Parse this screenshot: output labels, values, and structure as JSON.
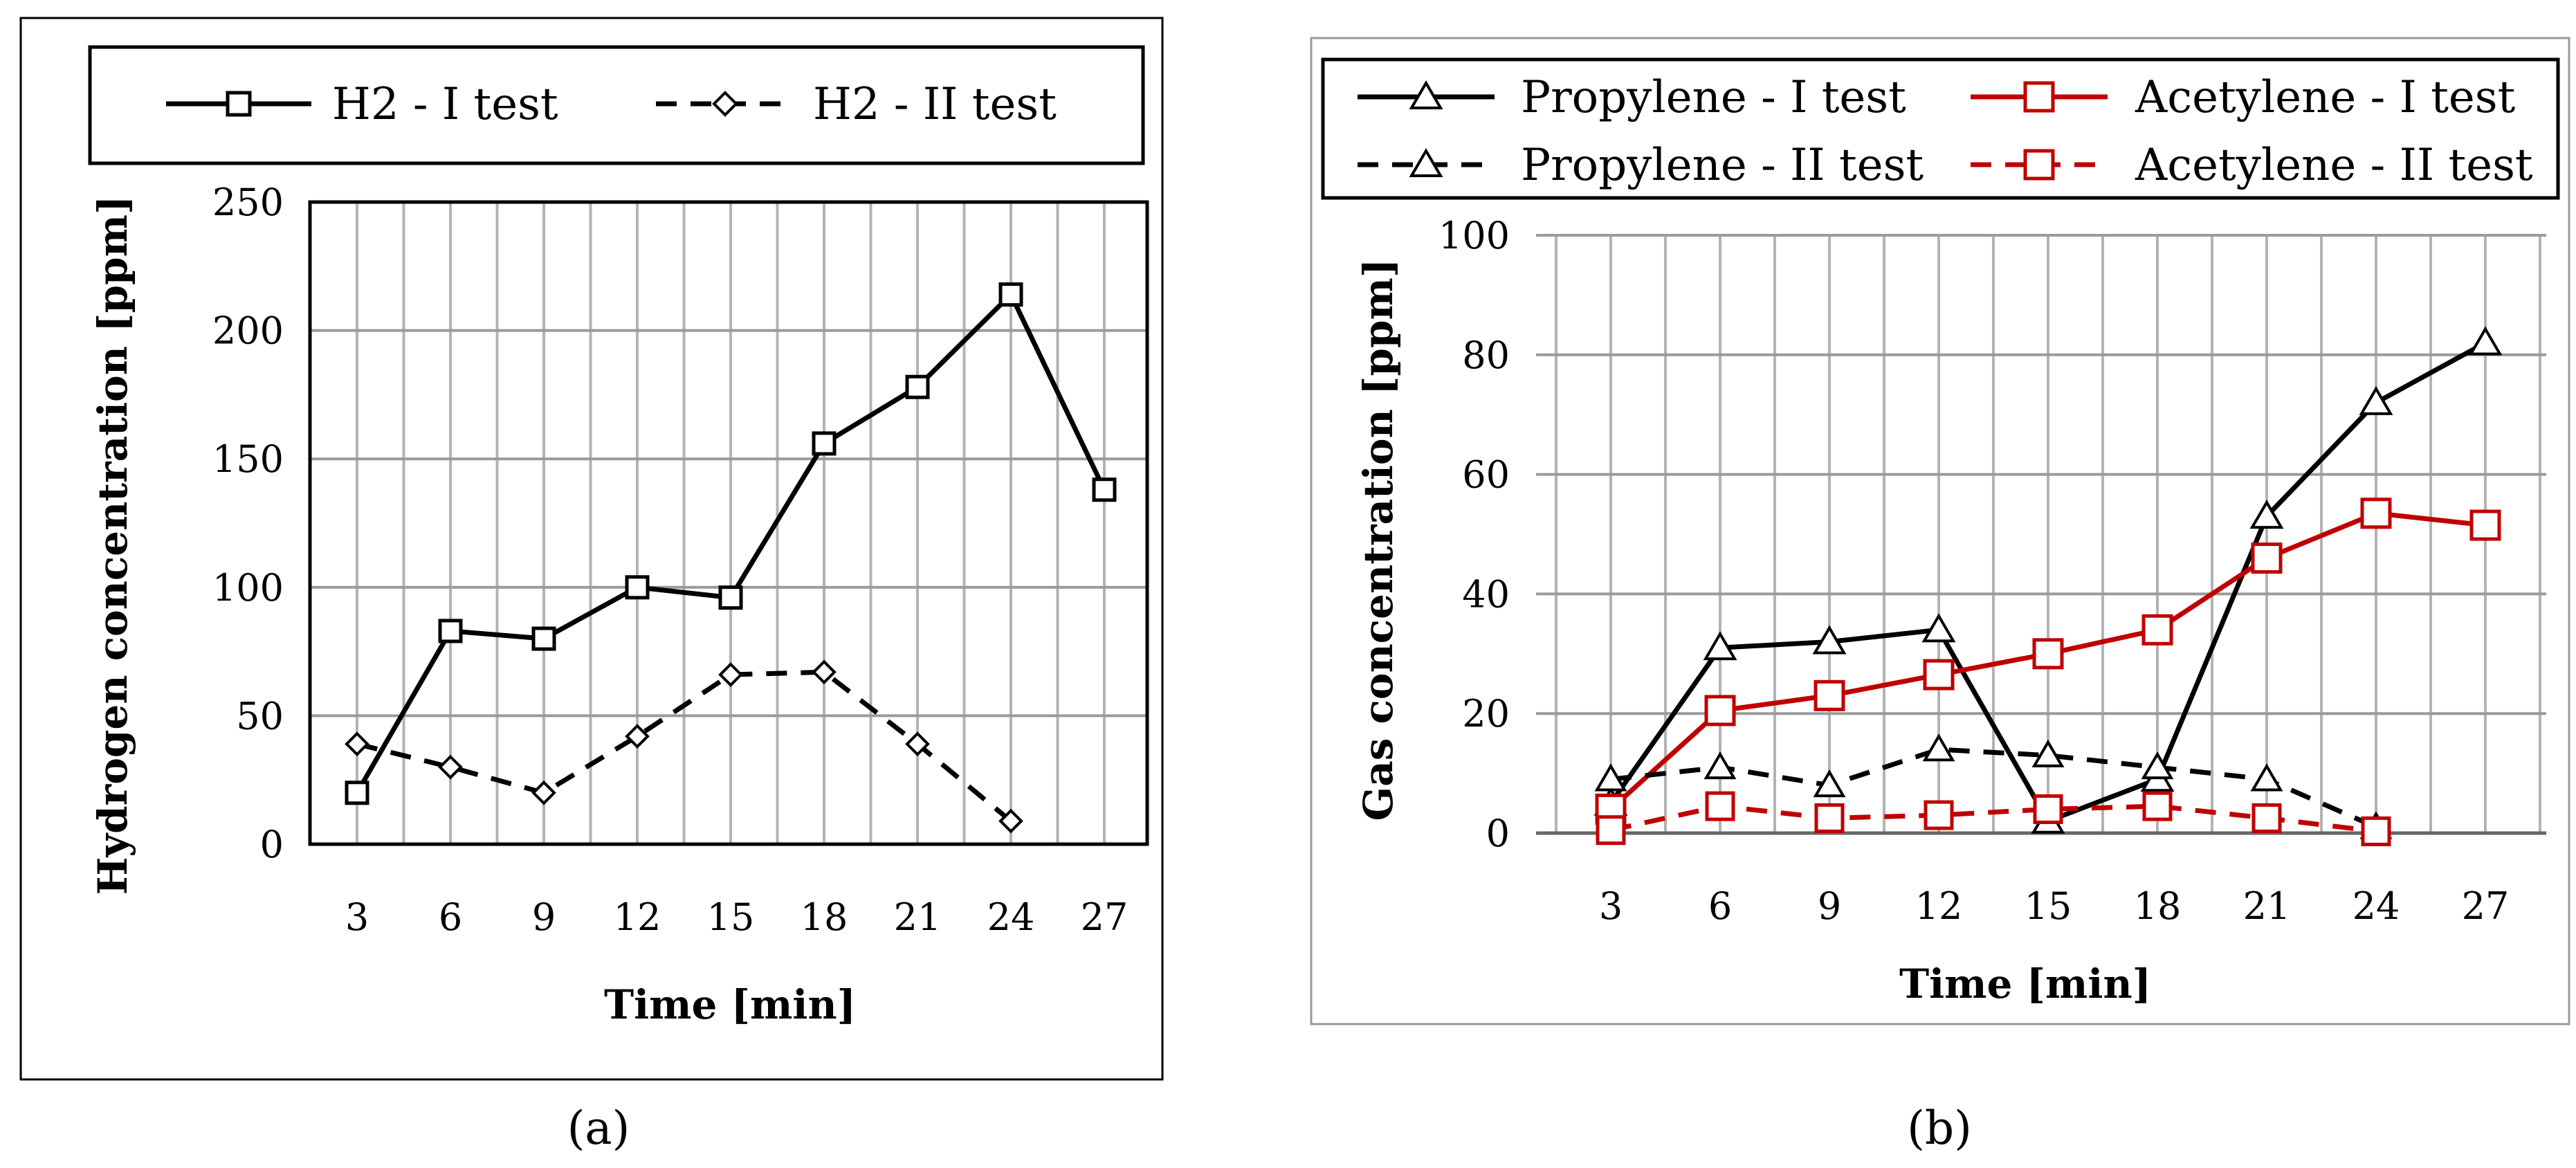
{
  "chart_data": [
    {
      "type": "line",
      "panel_label": "(a)",
      "xlabel": "Time [min]",
      "ylabel": "Hydrogen concentration [ppm]",
      "categories": [
        "3",
        "6",
        "9",
        "12",
        "15",
        "18",
        "21",
        "24",
        "27"
      ],
      "ylim": [
        0,
        250
      ],
      "yticks": [
        0,
        50,
        100,
        150,
        200,
        250
      ],
      "grid": true,
      "legend_position": "top",
      "series": [
        {
          "name": "H2 - I test",
          "color": "#000000",
          "dash": false,
          "marker": "square",
          "values": [
            20,
            83,
            80,
            100,
            96,
            156,
            178,
            214,
            138
          ]
        },
        {
          "name": "H2 - II test",
          "color": "#000000",
          "dash": true,
          "marker": "diamond",
          "values": [
            39,
            30,
            20,
            42,
            66,
            67,
            39,
            9,
            null
          ]
        }
      ]
    },
    {
      "type": "line",
      "panel_label": "(b)",
      "xlabel": "Time [min]",
      "ylabel": "Gas concentration [ppm]",
      "categories": [
        "3",
        "6",
        "9",
        "12",
        "15",
        "18",
        "21",
        "24",
        "27"
      ],
      "ylim": [
        0,
        100
      ],
      "yticks": [
        0,
        20,
        40,
        60,
        80,
        100
      ],
      "grid": true,
      "legend_position": "top",
      "series": [
        {
          "name": "Propylene - I test",
          "color": "#000000",
          "dash": false,
          "marker": "triangle",
          "values": [
            5,
            31,
            32,
            34,
            2,
            9,
            53,
            72,
            82
          ]
        },
        {
          "name": "Acetylene - I test",
          "color": "#C00000",
          "dash": false,
          "marker": "square",
          "values": [
            4,
            20.5,
            23,
            26.5,
            30,
            34,
            46,
            53.5,
            51.5
          ]
        },
        {
          "name": "Propylene - II test",
          "color": "#000000",
          "dash": true,
          "marker": "triangle",
          "values": [
            9,
            11,
            8,
            14,
            13,
            11,
            9,
            1,
            null
          ]
        },
        {
          "name": "Acetylene - II test",
          "color": "#C00000",
          "dash": true,
          "marker": "square",
          "values": [
            0.5,
            4.5,
            2.5,
            3,
            4,
            4.5,
            2.5,
            0.3,
            null
          ]
        }
      ]
    }
  ]
}
